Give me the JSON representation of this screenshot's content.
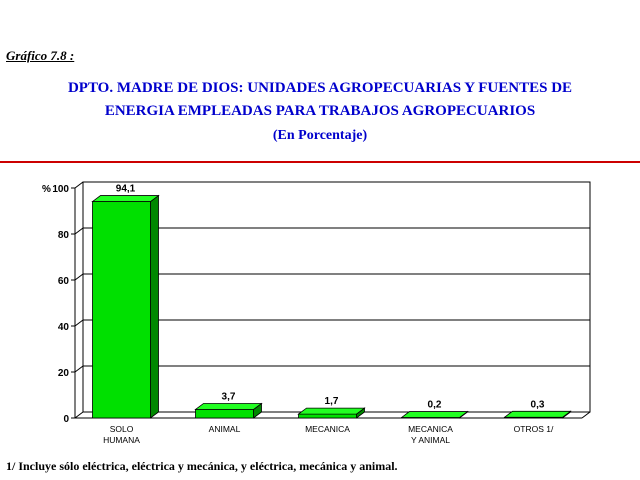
{
  "header": {
    "figure_label": "Gráfico 7.8 :",
    "title_line1": "DPTO. MADRE DE DIOS: UNIDADES AGROPECUARIAS Y FUENTES DE",
    "title_line2": "ENERGIA EMPLEADAS PARA TRABAJOS AGROPECUARIOS",
    "subtitle": "(En Porcentaje)"
  },
  "chart_data": {
    "type": "bar",
    "ylabel": "%",
    "ylim": [
      0,
      100
    ],
    "yticks": [
      0,
      20,
      40,
      60,
      80,
      100
    ],
    "grid": true,
    "categories": [
      [
        "SOLO",
        "HUMANA"
      ],
      [
        "ANIMAL"
      ],
      [
        "MECANICA"
      ],
      [
        "MECANICA",
        "Y ANIMAL"
      ],
      [
        "OTROS 1/"
      ]
    ],
    "values": [
      94.1,
      3.7,
      1.7,
      0.2,
      0.3
    ],
    "data_labels": [
      "94,1",
      "3,7",
      "1,7",
      "0,2",
      "0,3"
    ],
    "colors": {
      "bar_front": "#00e000",
      "bar_top": "#22ff22",
      "bar_side": "#008800",
      "axis": "#000000"
    }
  },
  "footnote": "1/ Incluye sólo eléctrica, eléctrica y mecánica, y eléctrica, mecánica y animal."
}
